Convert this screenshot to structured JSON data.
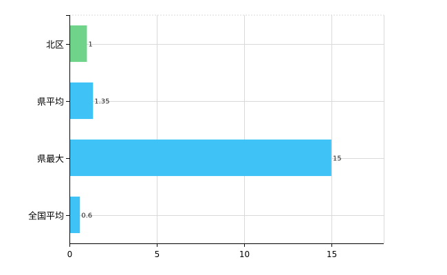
{
  "chart_data": {
    "type": "bar",
    "orientation": "horizontal",
    "title": "",
    "xlabel": "",
    "ylabel": "",
    "xlim": [
      0,
      18
    ],
    "x_ticks": [
      0,
      5,
      10,
      15
    ],
    "grid": true,
    "legend": "none",
    "categories": [
      "北区",
      "県平均",
      "県最大",
      "全国平均"
    ],
    "values": [
      1,
      1.35,
      15,
      0.6
    ],
    "data_labels": [
      "1",
      "1.35",
      "15",
      "0.6"
    ],
    "bar_colors": [
      "#6fd38a",
      "#3fc3f6",
      "#3fc3f6",
      "#3fc3f6"
    ],
    "grid_color": "#d9d9d9",
    "axis_color": "#000000"
  }
}
